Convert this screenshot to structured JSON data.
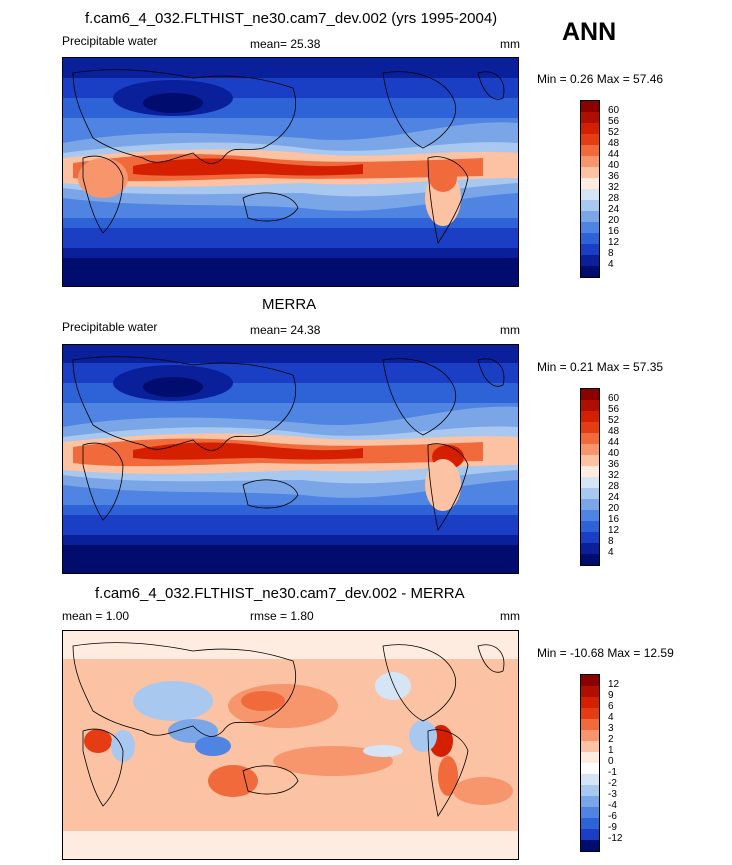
{
  "season": "ANN",
  "panels": [
    {
      "title": "f.cam6_4_032.FLTHIST_ne30.cam7_dev.002 (yrs 1995-2004)",
      "left_label": "Precipitable water",
      "mid_label": "mean=  25.38",
      "units": "mm",
      "minmax": "Min =    0.26 Max =  57.46",
      "levels": [
        "60",
        "56",
        "52",
        "48",
        "44",
        "40",
        "36",
        "32",
        "28",
        "24",
        "20",
        "16",
        "12",
        "8",
        "4"
      ]
    },
    {
      "title": "MERRA",
      "left_label": "Precipitable water",
      "mid_label": "mean=  24.38",
      "units": "mm",
      "minmax": "Min =   0.21 Max =  57.35",
      "levels": [
        "60",
        "56",
        "52",
        "48",
        "44",
        "40",
        "36",
        "32",
        "28",
        "24",
        "20",
        "16",
        "12",
        "8",
        "4"
      ]
    },
    {
      "title": "f.cam6_4_032.FLTHIST_ne30.cam7_dev.002 - MERRA",
      "left_label": "mean =   1.00",
      "mid_label": "rmse =   1.80",
      "units": "mm",
      "minmax": "Min = -10.68 Max =  12.59",
      "levels": [
        "12",
        "9",
        "6",
        "4",
        "3",
        "2",
        "1",
        "0",
        "-1",
        "-2",
        "-3",
        "-4",
        "-6",
        "-9",
        "-12"
      ]
    }
  ],
  "colors": {
    "full": [
      "#8b0000",
      "#b00f00",
      "#d42000",
      "#e63c14",
      "#f06a3c",
      "#f7956c",
      "#fbc3a3",
      "#fdecdf",
      "#d6e5f6",
      "#a9c8ef",
      "#7aa6e8",
      "#4f84e2",
      "#2e63d8",
      "#1a3fc4",
      "#0a1f9a",
      "#000c6e"
    ],
    "diff": [
      "#8b0000",
      "#b00f00",
      "#d42000",
      "#e63c14",
      "#f06a3c",
      "#f7956c",
      "#fbc3a3",
      "#fdecdf",
      "#ffffff",
      "#d6e5f6",
      "#a9c8ef",
      "#7aa6e8",
      "#4f84e2",
      "#2e63d8",
      "#1a3fc4",
      "#000c6e"
    ]
  }
}
